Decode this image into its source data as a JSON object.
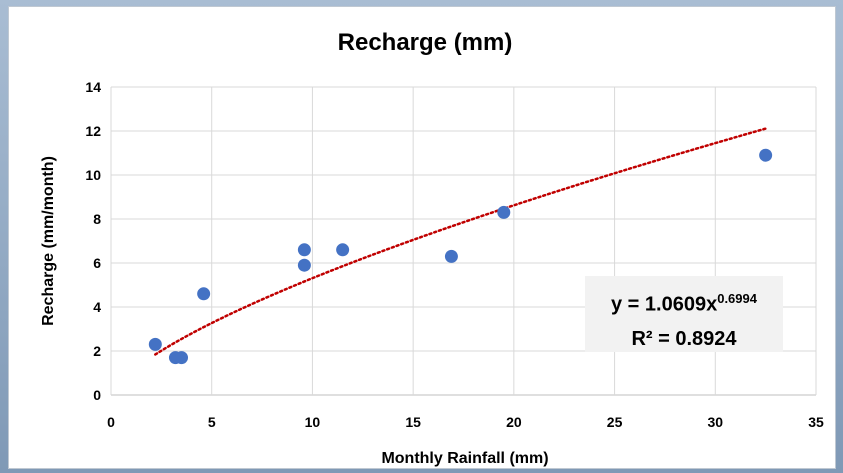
{
  "chart_data": {
    "type": "scatter",
    "title": "Recharge (mm)",
    "xlabel": "Monthly Rainfall (mm)",
    "ylabel": "Recharge (mm/month)",
    "xlim": [
      0,
      35
    ],
    "ylim": [
      0,
      14
    ],
    "xticks": [
      "0",
      "5",
      "10",
      "15",
      "20",
      "25",
      "30",
      "35"
    ],
    "yticks": [
      "0",
      "2",
      "4",
      "6",
      "8",
      "10",
      "12",
      "14"
    ],
    "grid": true,
    "series": [
      {
        "points": [
          {
            "x": 2.2,
            "y": 2.3
          },
          {
            "x": 3.2,
            "y": 1.7
          },
          {
            "x": 3.5,
            "y": 1.7
          },
          {
            "x": 4.6,
            "y": 4.6
          },
          {
            "x": 9.6,
            "y": 6.6
          },
          {
            "x": 9.6,
            "y": 5.9
          },
          {
            "x": 11.5,
            "y": 6.6
          },
          {
            "x": 16.9,
            "y": 6.3
          },
          {
            "x": 19.5,
            "y": 8.3
          },
          {
            "x": 32.5,
            "y": 10.9
          }
        ],
        "color": "#4472c4"
      }
    ],
    "trendline": {
      "type": "power",
      "a": 1.0609,
      "b": 0.6994,
      "x_range": [
        2.2,
        32.5
      ],
      "color": "#c00000",
      "style": "dotted"
    },
    "equation": {
      "line1_base": "y = 1.0609x",
      "line1_exp": "0.6994",
      "line2": "R² = 0.8924"
    }
  }
}
